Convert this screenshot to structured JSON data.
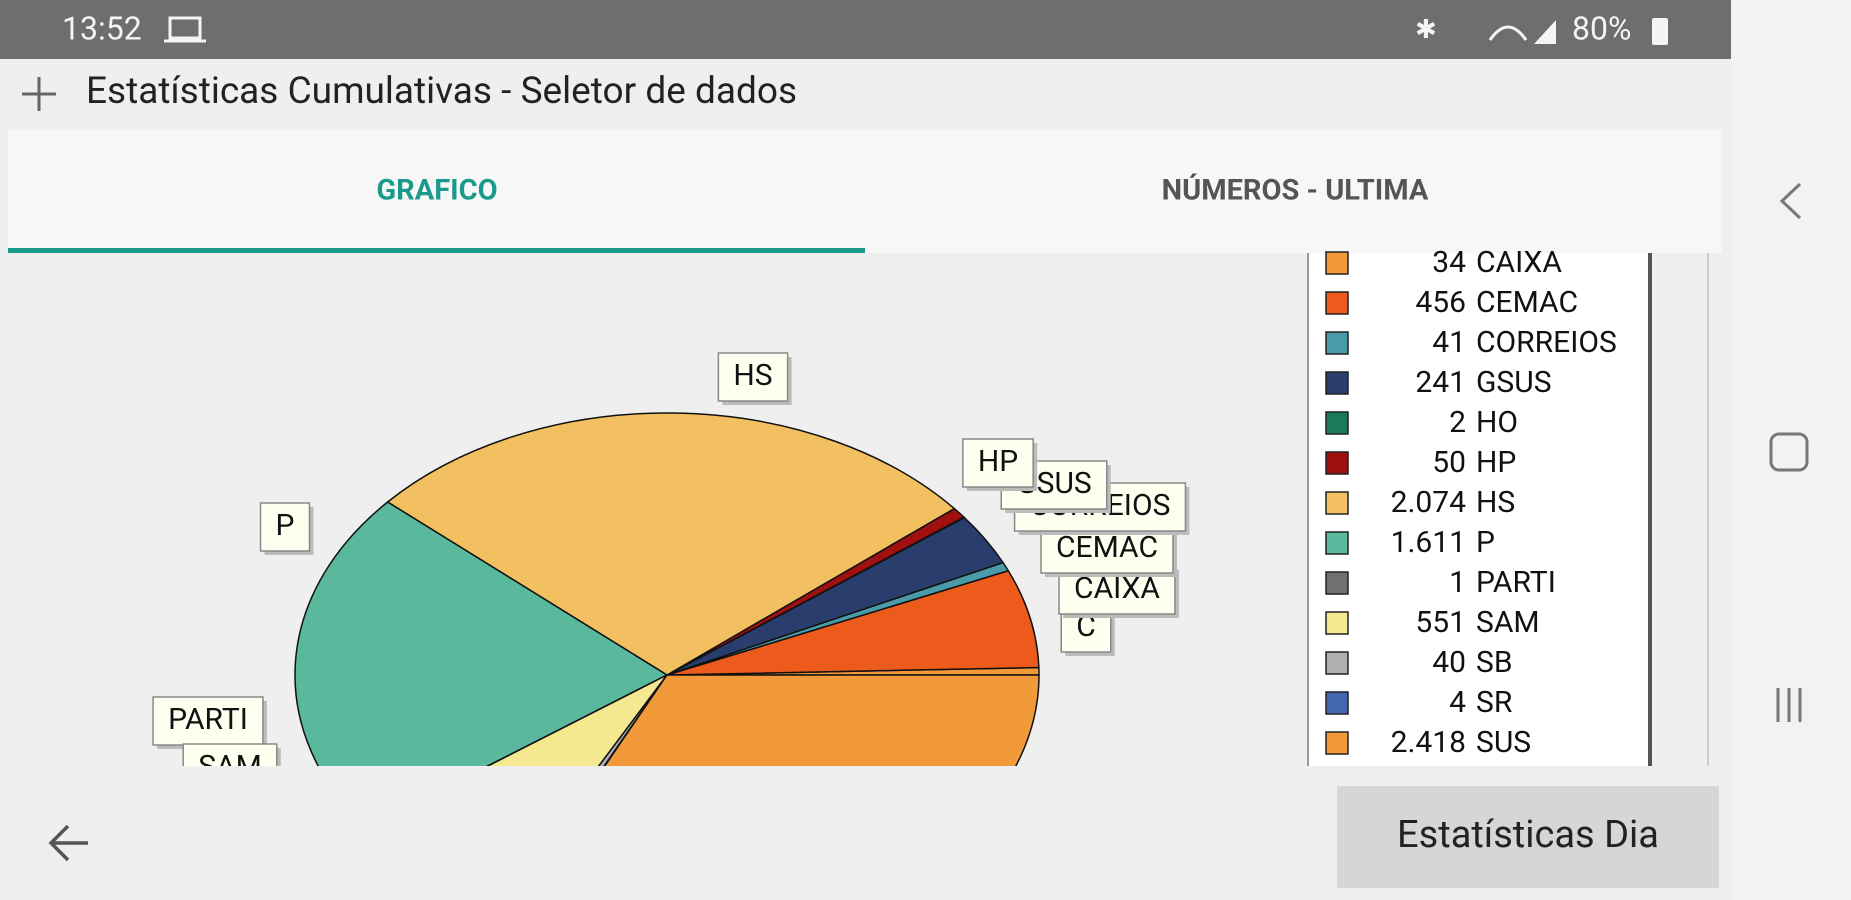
{
  "status_bar": {
    "time": "13:52",
    "battery": "80%"
  },
  "toolbar": {
    "title": "Estatísticas Cumulativas - Seletor de dados"
  },
  "tabs": [
    "GRAFICO",
    "NÚMEROS - ULTIMA"
  ],
  "chart": {
    "type": "pie",
    "slices": [
      {
        "name": "CAIXA",
        "value": 34,
        "value_label": "34",
        "color": "#f29a3a"
      },
      {
        "name": "CEMAC",
        "value": 456,
        "value_label": "456",
        "color": "#ec5a1c"
      },
      {
        "name": "CORREIOS",
        "value": 41,
        "value_label": "41",
        "color": "#4a9aaa"
      },
      {
        "name": "GSUS",
        "value": 241,
        "value_label": "241",
        "color": "#2a3e6e"
      },
      {
        "name": "HO",
        "value": 2,
        "value_label": "2",
        "color": "#1a7a5a"
      },
      {
        "name": "HP",
        "value": 50,
        "value_label": "50",
        "color": "#a01010"
      },
      {
        "name": "HS",
        "value": 2074,
        "value_label": "2.074",
        "color": "#f2c060"
      },
      {
        "name": "P",
        "value": 1611,
        "value_label": "1.611",
        "color": "#5ab89c"
      },
      {
        "name": "PARTI",
        "value": 1,
        "value_label": "1",
        "color": "#707070"
      },
      {
        "name": "SAM",
        "value": 551,
        "value_label": "551",
        "color": "#f4e890"
      },
      {
        "name": "SB",
        "value": 40,
        "value_label": "40",
        "color": "#b0b0b0"
      },
      {
        "name": "SR",
        "value": 4,
        "value_label": "4",
        "color": "#4466b0"
      },
      {
        "name": "SUS",
        "value": 2418,
        "value_label": "2.418",
        "color": "#f29a3a"
      }
    ],
    "callouts": [
      "HS",
      "P",
      "PARTI",
      "SAM",
      "C",
      "CAIXA",
      "CEMAC",
      "CORREIOS",
      "GSUS",
      "HP"
    ]
  },
  "button": "Estatísticas Dia"
}
